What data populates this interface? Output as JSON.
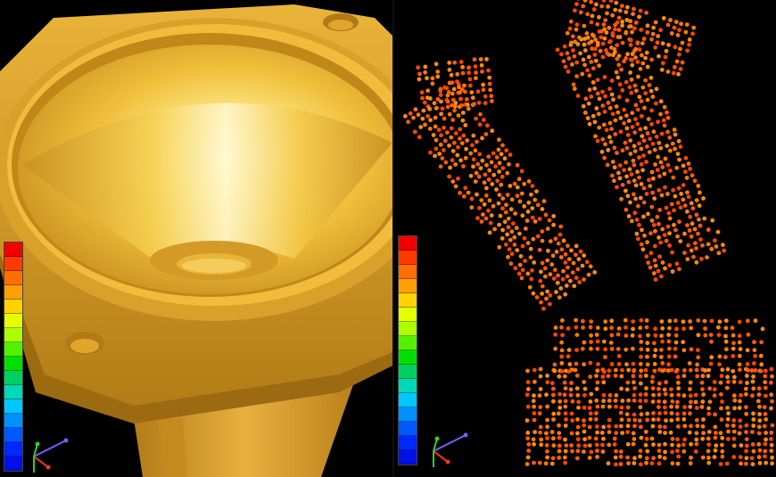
{
  "viewports": [
    {
      "name": "solid-model-view",
      "model_color": "#e2a52c",
      "highlight_color": "#fffbe0"
    },
    {
      "name": "point-cloud-view",
      "point_colors": [
        "#ff8a10",
        "#ff5a08",
        "#ff7a00",
        "#ff4500"
      ]
    }
  ],
  "legend": {
    "colors": [
      "#f20000",
      "#ff3a00",
      "#ff6e00",
      "#ffa000",
      "#ffd200",
      "#e6ff00",
      "#aaff00",
      "#55f000",
      "#00e000",
      "#00d060",
      "#00d8b8",
      "#00c8ff",
      "#0090ff",
      "#0058ff",
      "#0028ff",
      "#0010e8"
    ]
  },
  "triad": {
    "x_color": "#ff3030",
    "y_color": "#30d030",
    "z_color": "#7a5cff"
  }
}
